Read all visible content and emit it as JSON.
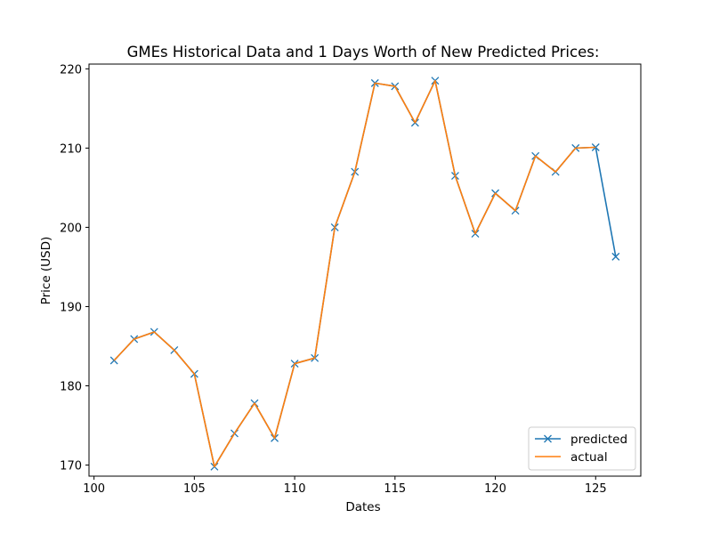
{
  "chart_data": {
    "type": "line",
    "title": "GMEs Historical Data and 1 Days Worth of New Predicted Prices:",
    "xlabel": "Dates",
    "ylabel": "Price (USD)",
    "xlim": [
      99.75,
      127.25
    ],
    "ylim": [
      168.6,
      220.6
    ],
    "x_ticks": [
      100,
      105,
      110,
      115,
      120,
      125
    ],
    "y_ticks": [
      170,
      180,
      190,
      200,
      210,
      220
    ],
    "grid": false,
    "legend_position": "lower right",
    "series": [
      {
        "name": "predicted",
        "color": "#1f77b4",
        "marker": "x",
        "x": [
          101,
          102,
          103,
          104,
          105,
          106,
          107,
          108,
          109,
          110,
          111,
          112,
          113,
          114,
          115,
          116,
          117,
          118,
          119,
          120,
          121,
          122,
          123,
          124,
          125,
          126
        ],
        "y": [
          183.2,
          185.9,
          186.8,
          184.5,
          181.5,
          169.8,
          174.0,
          177.8,
          173.4,
          182.8,
          183.5,
          200.0,
          207.0,
          218.2,
          217.8,
          213.2,
          218.5,
          206.5,
          199.2,
          204.3,
          202.1,
          209.0,
          207.0,
          210.0,
          210.1,
          196.3
        ]
      },
      {
        "name": "actual",
        "color": "#ff7f0e",
        "marker": "none",
        "x": [
          101,
          102,
          103,
          104,
          105,
          106,
          107,
          108,
          109,
          110,
          111,
          112,
          113,
          114,
          115,
          116,
          117,
          118,
          119,
          120,
          121,
          122,
          123,
          124,
          125
        ],
        "y": [
          183.2,
          185.9,
          186.8,
          184.5,
          181.5,
          169.8,
          174.0,
          177.8,
          173.4,
          182.8,
          183.5,
          200.0,
          207.0,
          218.2,
          217.8,
          213.2,
          218.5,
          206.5,
          199.2,
          204.3,
          202.1,
          209.0,
          207.0,
          210.0,
          210.1
        ]
      }
    ]
  }
}
